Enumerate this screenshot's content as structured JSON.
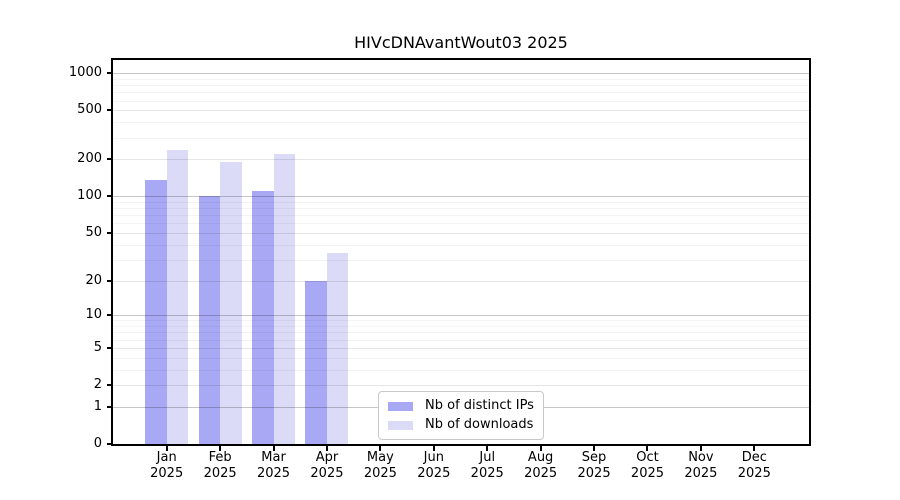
{
  "title": "HIVcDNAvantWout03 2025",
  "chart_data": {
    "type": "bar",
    "title": "HIVcDNAvantWout03 2025",
    "categories": [
      {
        "month": "Jan",
        "year": "2025"
      },
      {
        "month": "Feb",
        "year": "2025"
      },
      {
        "month": "Mar",
        "year": "2025"
      },
      {
        "month": "Apr",
        "year": "2025"
      },
      {
        "month": "May",
        "year": "2025"
      },
      {
        "month": "Jun",
        "year": "2025"
      },
      {
        "month": "Jul",
        "year": "2025"
      },
      {
        "month": "Aug",
        "year": "2025"
      },
      {
        "month": "Sep",
        "year": "2025"
      },
      {
        "month": "Oct",
        "year": "2025"
      },
      {
        "month": "Nov",
        "year": "2025"
      },
      {
        "month": "Dec",
        "year": "2025"
      }
    ],
    "series": [
      {
        "name": "Nb of distinct IPs",
        "color": "#a8a8f5",
        "values": [
          135,
          100,
          110,
          20,
          0,
          0,
          0,
          0,
          0,
          0,
          0,
          0
        ]
      },
      {
        "name": "Nb of downloads",
        "color": "#dbdbf8",
        "values": [
          240,
          190,
          220,
          34,
          0,
          0,
          0,
          0,
          0,
          0,
          0,
          0
        ]
      }
    ],
    "yticks": [
      0,
      1,
      2,
      5,
      10,
      20,
      50,
      100,
      200,
      500,
      1000
    ],
    "xlabel": "",
    "ylabel": "",
    "scale": "log1p",
    "ylim": [
      0,
      1283
    ],
    "grid": true,
    "legend_position": "lower-center-inside"
  }
}
